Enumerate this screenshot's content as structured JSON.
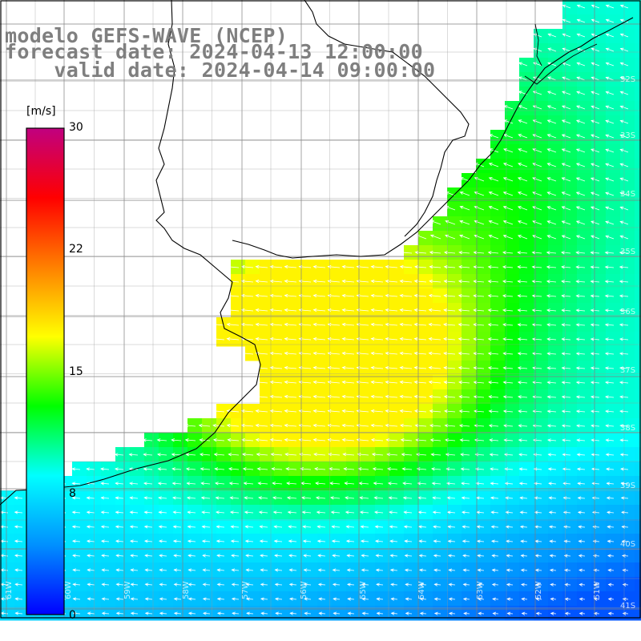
{
  "title": {
    "model": "modelo GEFS-WAVE (NCEP)",
    "forecast": "forecast date: 2024-04-13 12:00:00",
    "valid": "    valid date: 2024-04-14 09:00:00"
  },
  "colorbar": {
    "unit": "[m/s]",
    "ticks": [
      "30",
      "22",
      "15",
      "8",
      "0"
    ],
    "min": 0,
    "max": 30,
    "colors": [
      "#0000ff",
      "#0090ff",
      "#00ffff",
      "#00ff00",
      "#ffff00",
      "#ff8000",
      "#ff0000",
      "#c00080"
    ]
  },
  "lat_labels": [
    "32S",
    "33S",
    "34S",
    "35S",
    "36S",
    "37S",
    "38S",
    "39S",
    "40S",
    "41S"
  ],
  "lon_labels": [
    "61W",
    "60W",
    "59W",
    "58W",
    "57W",
    "56W",
    "55W",
    "54W",
    "53W",
    "52W",
    "51W"
  ],
  "field": {
    "variable": "wind speed",
    "units": "m/s",
    "wind_direction": "easterly (arrows pointing west / south-west)"
  }
}
